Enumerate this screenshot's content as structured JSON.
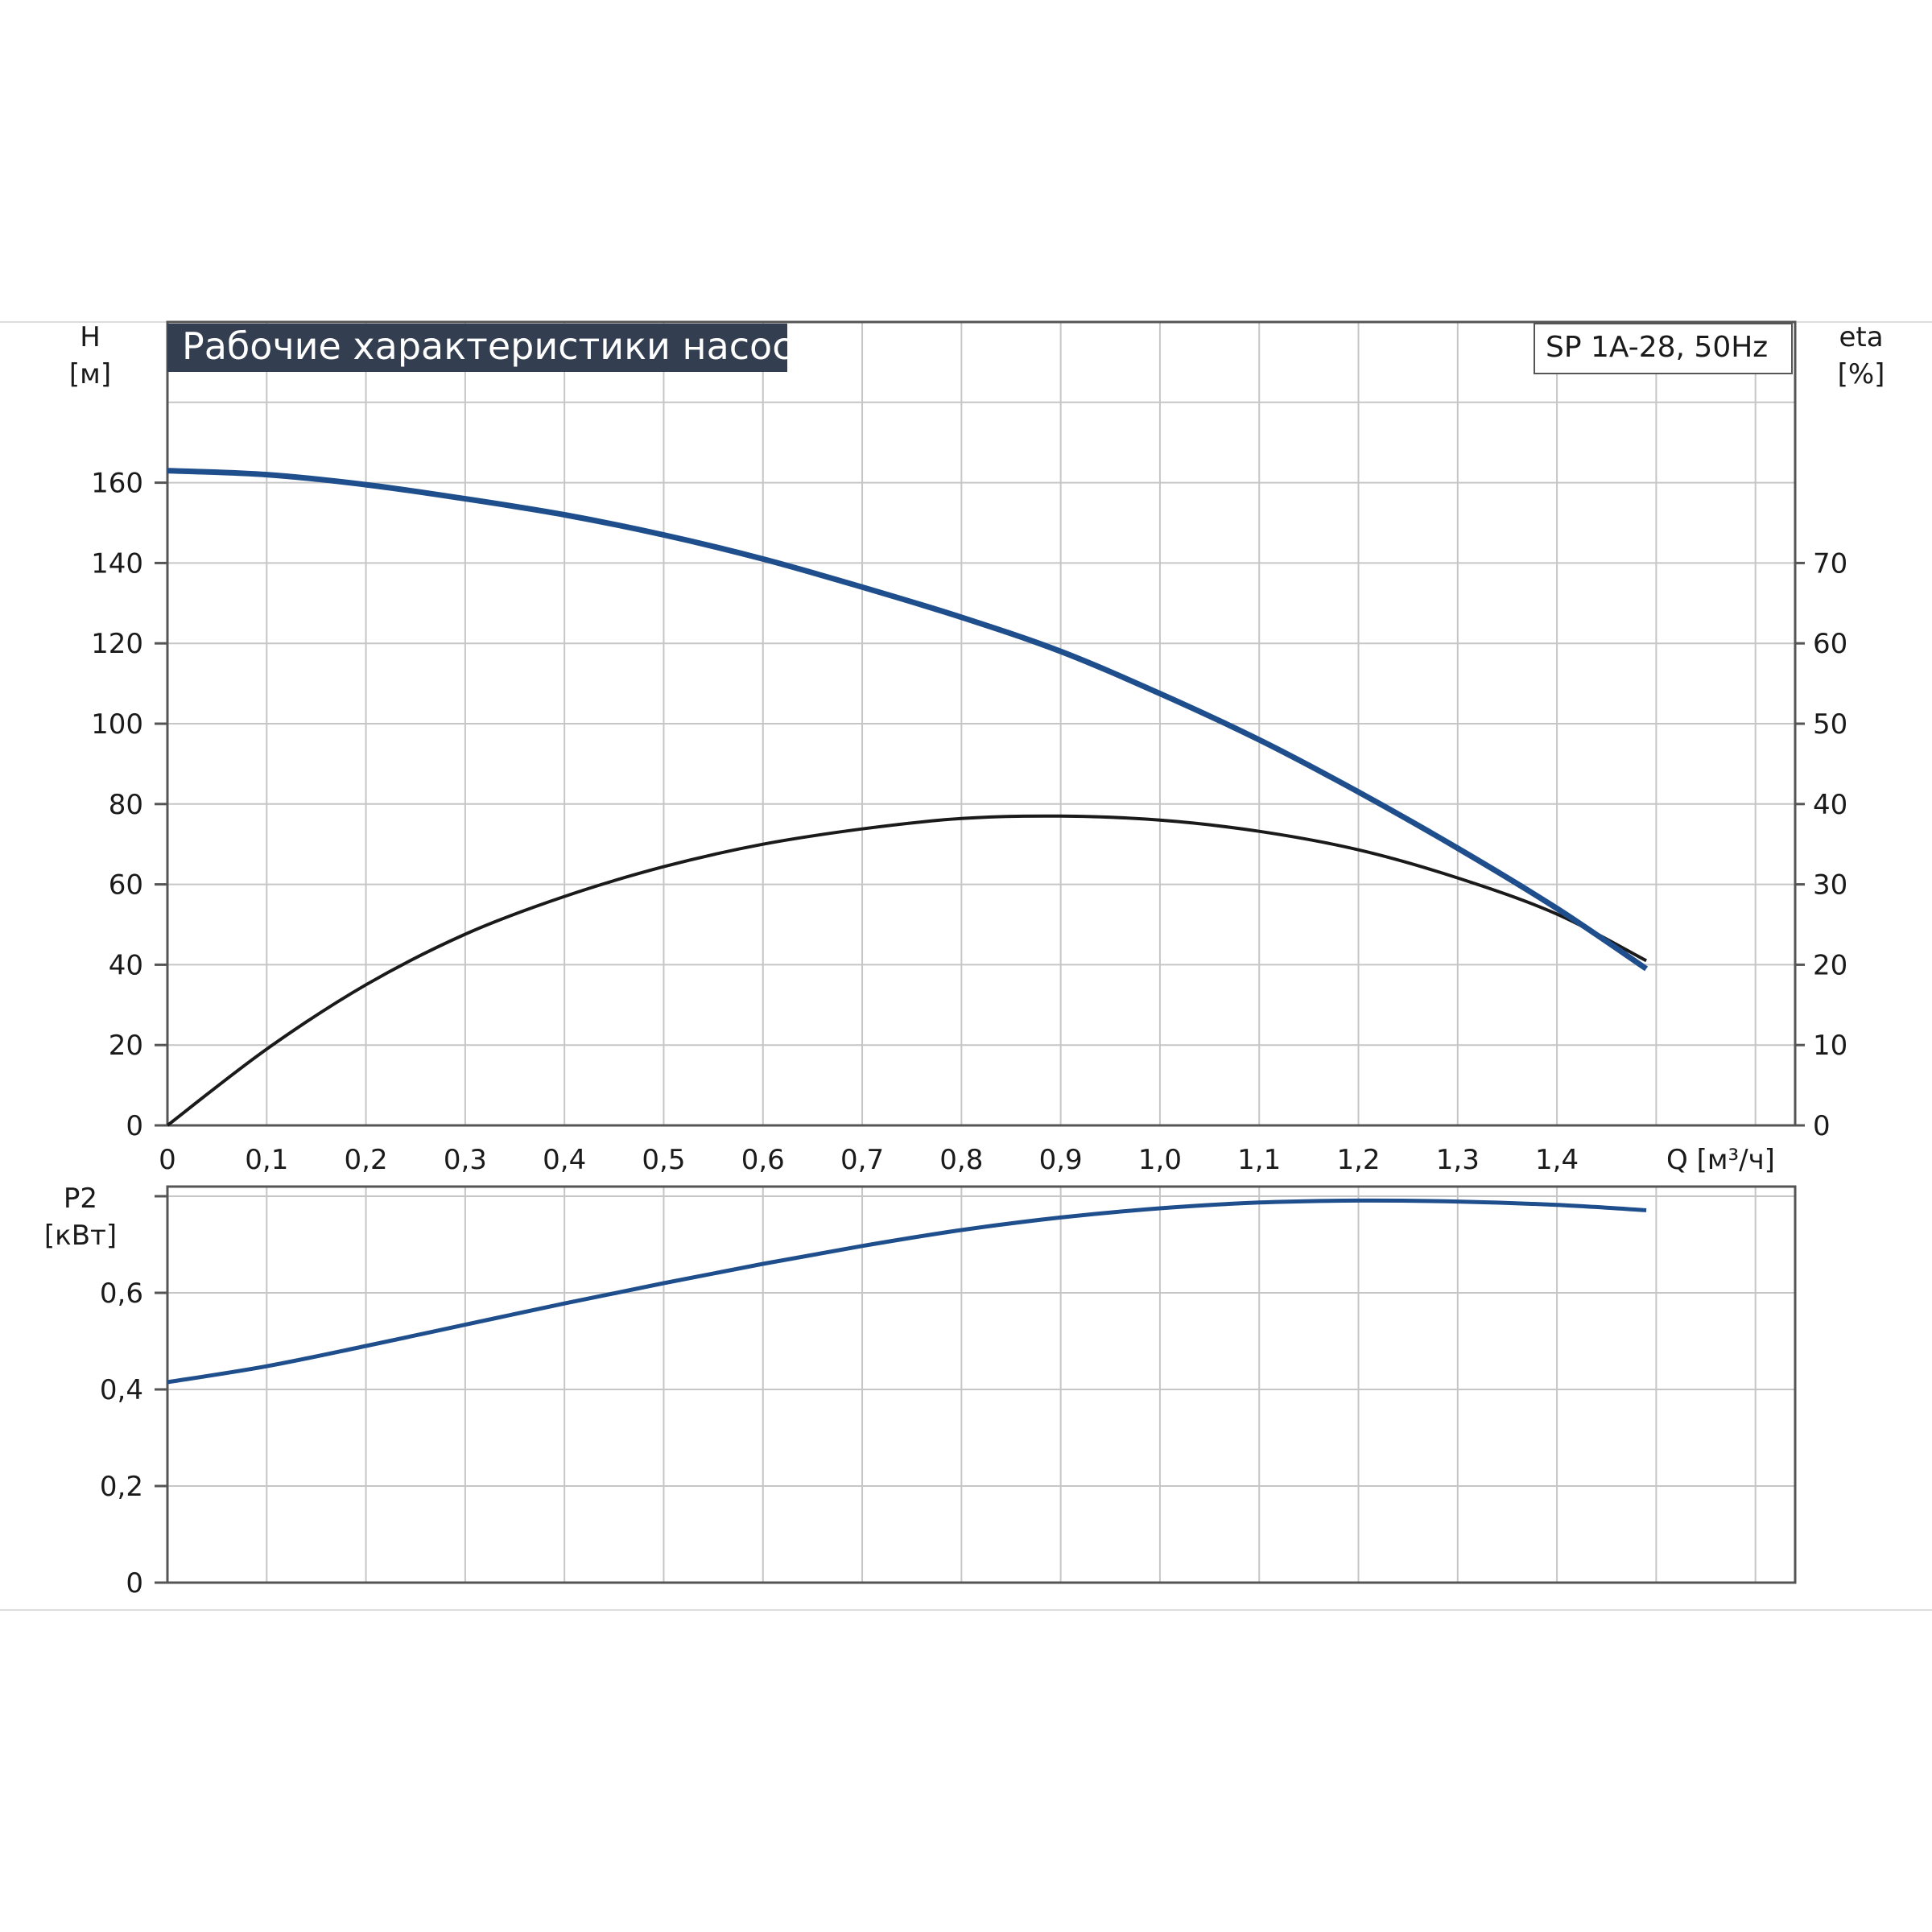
{
  "chart_data": [
    {
      "type": "line",
      "title": "Рабочие характеристики насоса",
      "model_label": "SP 1A-28, 50Hz",
      "x_axis_label": "Q [м³/ч]",
      "x_tick_labels": [
        "0",
        "0,1",
        "0,2",
        "0,3",
        "0,4",
        "0,5",
        "0,6",
        "0,7",
        "0,8",
        "0,9",
        "1,0",
        "1,1",
        "1,2",
        "1,3",
        "1,4"
      ],
      "xlim": [
        0,
        1.64
      ],
      "left_axis": {
        "label_line1": "H",
        "label_line2": "[м]",
        "ylim": [
          0,
          200
        ],
        "tick_values": [
          0,
          20,
          40,
          60,
          80,
          100,
          120,
          140,
          160
        ]
      },
      "right_axis": {
        "label_line1": "eta",
        "label_line2": "[%]",
        "ylim": [
          0,
          100
        ],
        "tick_values": [
          0,
          10,
          20,
          30,
          40,
          50,
          60,
          70
        ]
      },
      "grid": true,
      "series": [
        {
          "axis": "left",
          "color": "#1f4e8c",
          "x": [
            0,
            0.1,
            0.2,
            0.3,
            0.4,
            0.5,
            0.6,
            0.7,
            0.8,
            0.9,
            1.0,
            1.1,
            1.2,
            1.3,
            1.4,
            1.49
          ],
          "y": [
            163,
            162,
            159.5,
            156,
            152,
            147,
            141,
            134,
            126.5,
            118,
            107.5,
            96,
            83,
            69,
            54,
            39
          ]
        },
        {
          "axis": "right",
          "color": "#1a1a1a",
          "x": [
            0,
            0.1,
            0.2,
            0.3,
            0.4,
            0.5,
            0.6,
            0.7,
            0.8,
            0.9,
            1.0,
            1.1,
            1.2,
            1.3,
            1.4,
            1.49
          ],
          "y": [
            0,
            9.5,
            17.5,
            23.8,
            28.5,
            32.2,
            35,
            36.9,
            38.2,
            38.5,
            38,
            36.6,
            34.3,
            30.8,
            26.3,
            20.5
          ]
        }
      ]
    },
    {
      "type": "line",
      "y_axis_label_line1": "P2",
      "y_axis_label_line2": "[кВт]",
      "ylim": [
        0,
        0.82
      ],
      "tick_labels": [
        "0",
        "0,2",
        "0,4",
        "0,6"
      ],
      "tick_values": [
        0,
        0.2,
        0.4,
        0.6
      ],
      "xlim": [
        0,
        1.64
      ],
      "grid": true,
      "series": [
        {
          "color": "#1f4e8c",
          "x": [
            0,
            0.1,
            0.2,
            0.3,
            0.4,
            0.5,
            0.6,
            0.7,
            0.8,
            0.9,
            1.0,
            1.1,
            1.2,
            1.3,
            1.4,
            1.49
          ],
          "y": [
            0.415,
            0.448,
            0.49,
            0.534,
            0.578,
            0.62,
            0.66,
            0.697,
            0.73,
            0.756,
            0.775,
            0.787,
            0.791,
            0.789,
            0.782,
            0.771
          ]
        }
      ]
    }
  ]
}
